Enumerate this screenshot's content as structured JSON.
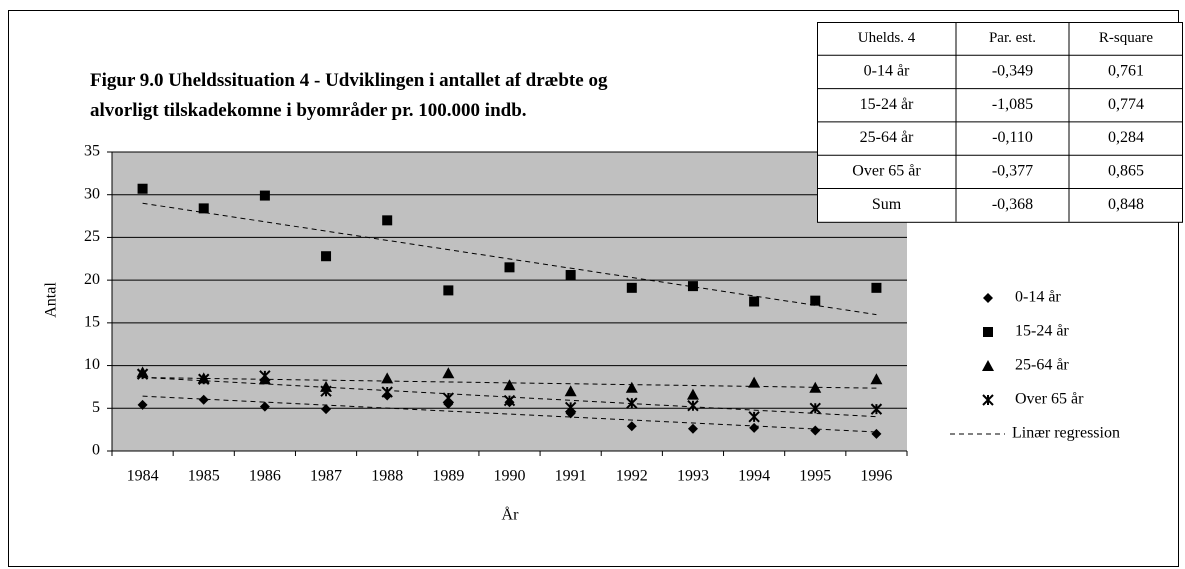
{
  "chart_data": {
    "type": "scatter",
    "title_lines": [
      "Figur 9.0 Uheldssituation 4 - Udviklingen i antallet af dræbte og",
      "alvorligt tilskadekomne i byområder pr. 100.000 indb."
    ],
    "x_label": "År",
    "y_label": "Antal",
    "categories": [
      "1984",
      "1985",
      "1986",
      "1987",
      "1988",
      "1989",
      "1990",
      "1991",
      "1992",
      "1993",
      "1994",
      "1995",
      "1996"
    ],
    "series": [
      {
        "name": "0-14 år",
        "color": "#000000",
        "marker": "diamond",
        "values": [
          5.4,
          6.0,
          5.2,
          4.9,
          6.5,
          5.5,
          5.7,
          4.4,
          2.9,
          2.6,
          2.7,
          2.4,
          2.0
        ]
      },
      {
        "name": "15-24 år",
        "color": "#000000",
        "marker": "square",
        "values": [
          30.7,
          28.4,
          29.9,
          22.8,
          27.0,
          18.8,
          21.5,
          20.6,
          19.1,
          19.3,
          17.5,
          17.6,
          19.1
        ]
      },
      {
        "name": "25-64 år",
        "color": "#000000",
        "marker": "triangle",
        "values": [
          9.2,
          8.5,
          8.4,
          7.5,
          8.5,
          9.1,
          7.7,
          7.0,
          7.4,
          6.6,
          8.0,
          7.4,
          8.4
        ]
      },
      {
        "name": "Over 65 år",
        "color": "#000000",
        "marker": "star",
        "values": [
          9.0,
          8.4,
          8.8,
          7.0,
          6.9,
          6.2,
          5.9,
          5.1,
          5.6,
          5.3,
          4.0,
          5.0,
          4.9
        ]
      }
    ],
    "trendline_label": "Linær regression",
    "ylim": [
      0,
      35
    ],
    "yticks": [
      0,
      5,
      10,
      15,
      20,
      25,
      30,
      35
    ],
    "grid": true,
    "plot_background": "#c0c0c0"
  },
  "table": {
    "header": [
      "Uhelds. 4",
      "Par. est.",
      "R-square"
    ],
    "rows": [
      [
        "0-14 år",
        "-0,349",
        "0,761"
      ],
      [
        "15-24 år",
        "-1,085",
        "0,774"
      ],
      [
        "25-64 år",
        "-0,110",
        "0,284"
      ],
      [
        "Over 65 år",
        "-0,377",
        "0,865"
      ],
      [
        "Sum",
        "-0,368",
        "0,848"
      ]
    ]
  }
}
